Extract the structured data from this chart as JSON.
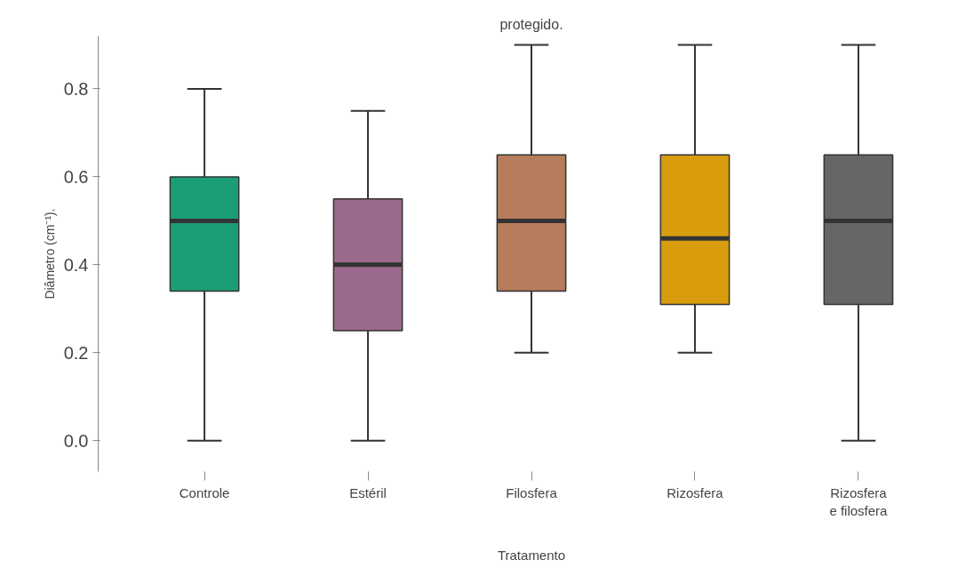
{
  "chart_data": {
    "type": "box",
    "title": "protegido.",
    "xlabel": "Tratamento",
    "ylabel": "Diâmetro (cm⁻¹).",
    "categories": [
      "Controle",
      "Estéril",
      "Filosfera",
      "Rizosfera",
      "Rizosfera\ne filosfera"
    ],
    "colors": [
      "#1b9e77",
      "#9b6a8c",
      "#b67c5c",
      "#d89c0c",
      "#666666"
    ],
    "boxes": [
      {
        "low": 0.0,
        "q1": 0.34,
        "median": 0.5,
        "q3": 0.6,
        "high": 0.8
      },
      {
        "low": 0.0,
        "q1": 0.25,
        "median": 0.4,
        "q3": 0.55,
        "high": 0.75
      },
      {
        "low": 0.2,
        "q1": 0.34,
        "median": 0.5,
        "q3": 0.65,
        "high": 0.9
      },
      {
        "low": 0.2,
        "q1": 0.31,
        "median": 0.46,
        "q3": 0.65,
        "high": 0.9
      },
      {
        "low": 0.0,
        "q1": 0.31,
        "median": 0.5,
        "q3": 0.65,
        "high": 0.9
      }
    ],
    "ylim": [
      -0.07,
      0.92
    ],
    "yticks": [
      {
        "value": 0,
        "label": "0.0"
      },
      0.2,
      0.4,
      0.6,
      0.8
    ],
    "grid": false
  }
}
